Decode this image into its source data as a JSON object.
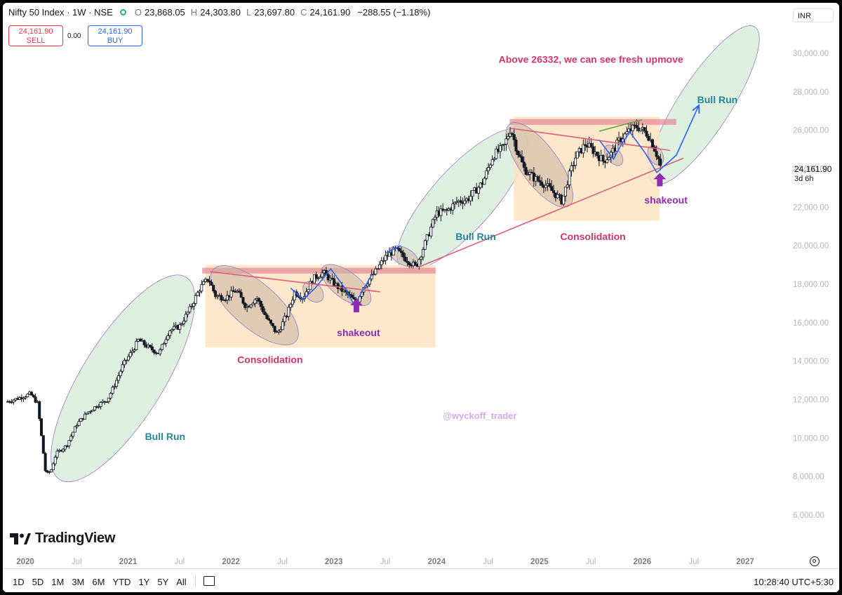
{
  "header": {
    "symbol": "Nifty 50 Index · 1W · NSE",
    "open_key": "O",
    "open": "23,868.05",
    "high_key": "H",
    "high": "24,303.80",
    "low_key": "L",
    "low": "23,697.80",
    "close_key": "C",
    "close": "24,161.90",
    "change": "−288.55 (−1.18%)"
  },
  "trade": {
    "sell_price": "24,161.90",
    "sell_label": "SELL",
    "spread": "0.00",
    "buy_price": "24,161.90",
    "buy_label": "BUY"
  },
  "currency": "INR",
  "last_price": "24,161.90",
  "countdown": "3d 6h",
  "brand": "TradingView",
  "ranges": [
    "1D",
    "5D",
    "1M",
    "3M",
    "6M",
    "YTD",
    "1Y",
    "5Y",
    "All"
  ],
  "clock": "10:28:40 UTC+5:30",
  "colors": {
    "bull_run_fill": "#c8e6c9",
    "consolidation_fill": "#fde4c3",
    "resistance": "#e57f94",
    "annotation": "#d6336c",
    "bull_label": "#26849c",
    "shakeout": "#8e2cb0",
    "watermark": "#d7a8e8",
    "trendline_blue": "#2962ff"
  },
  "chart_data": {
    "type": "candlestick",
    "symbol": "Nifty 50 Index",
    "timeframe": "1W",
    "y_axis": {
      "ticks": [
        6000,
        8000,
        10000,
        12000,
        14000,
        16000,
        18000,
        20000,
        22000,
        24000,
        26000,
        28000,
        30000
      ],
      "tick_labels": [
        "6,000.00",
        "8,000.00",
        "10,000.00",
        "12,000.00",
        "14,000.00",
        "16,000.00",
        "18,000.00",
        "20,000.00",
        "22,000.00",
        "24,000.00",
        "26,000.00",
        "28,000.00",
        "30,000.00"
      ]
    },
    "x_axis": {
      "tick_labels": [
        "2020",
        "Jul",
        "2021",
        "Jul",
        "2022",
        "Jul",
        "2023",
        "Jul",
        "2024",
        "Jul",
        "2025",
        "Jul",
        "2026",
        "Jul",
        "2027"
      ],
      "tick_dates": [
        2020.0,
        2020.5,
        2021.0,
        2021.5,
        2022.0,
        2022.5,
        2023.0,
        2023.5,
        2024.0,
        2024.5,
        2025.0,
        2025.5,
        2026.0,
        2026.5,
        2027.0
      ],
      "bold": [
        true,
        false,
        true,
        false,
        true,
        false,
        true,
        false,
        true,
        false,
        true,
        false,
        true,
        false,
        true
      ],
      "range": [
        2019.83,
        2027.3
      ]
    },
    "price_path": [
      [
        2019.83,
        11900
      ],
      [
        2019.95,
        12100
      ],
      [
        2020.05,
        12300
      ],
      [
        2020.12,
        11800
      ],
      [
        2020.17,
        9500
      ],
      [
        2020.2,
        8100
      ],
      [
        2020.25,
        8300
      ],
      [
        2020.3,
        9200
      ],
      [
        2020.4,
        9600
      ],
      [
        2020.5,
        10700
      ],
      [
        2020.6,
        11300
      ],
      [
        2020.7,
        11700
      ],
      [
        2020.8,
        12000
      ],
      [
        2020.88,
        12900
      ],
      [
        2020.95,
        13800
      ],
      [
        2021.05,
        14600
      ],
      [
        2021.1,
        15100
      ],
      [
        2021.2,
        14700
      ],
      [
        2021.3,
        14400
      ],
      [
        2021.4,
        15600
      ],
      [
        2021.5,
        15800
      ],
      [
        2021.6,
        16700
      ],
      [
        2021.7,
        17800
      ],
      [
        2021.78,
        18300
      ],
      [
        2021.85,
        17400
      ],
      [
        2021.95,
        17300
      ],
      [
        2022.05,
        17700
      ],
      [
        2022.15,
        16800
      ],
      [
        2022.25,
        17300
      ],
      [
        2022.35,
        16200
      ],
      [
        2022.45,
        15400
      ],
      [
        2022.55,
        16500
      ],
      [
        2022.62,
        17600
      ],
      [
        2022.7,
        17300
      ],
      [
        2022.8,
        18300
      ],
      [
        2022.9,
        18600
      ],
      [
        2022.97,
        18200
      ],
      [
        2023.05,
        17800
      ],
      [
        2023.15,
        17400
      ],
      [
        2023.22,
        17000
      ],
      [
        2023.28,
        17800
      ],
      [
        2023.4,
        18600
      ],
      [
        2023.5,
        19400
      ],
      [
        2023.6,
        19800
      ],
      [
        2023.68,
        19400
      ],
      [
        2023.75,
        19100
      ],
      [
        2023.8,
        18900
      ],
      [
        2023.9,
        20300
      ],
      [
        2024.0,
        21700
      ],
      [
        2024.1,
        21800
      ],
      [
        2024.2,
        22300
      ],
      [
        2024.3,
        22400
      ],
      [
        2024.45,
        23300
      ],
      [
        2024.55,
        24700
      ],
      [
        2024.65,
        25100
      ],
      [
        2024.72,
        26100
      ],
      [
        2024.78,
        25000
      ],
      [
        2024.85,
        24000
      ],
      [
        2024.95,
        23500
      ],
      [
        2025.05,
        23200
      ],
      [
        2025.15,
        22700
      ],
      [
        2025.22,
        22300
      ],
      [
        2025.28,
        23500
      ],
      [
        2025.35,
        24600
      ],
      [
        2025.45,
        25300
      ],
      [
        2025.55,
        24800
      ],
      [
        2025.62,
        24400
      ],
      [
        2025.7,
        24800
      ],
      [
        2025.78,
        25500
      ],
      [
        2025.88,
        26000
      ],
      [
        2025.95,
        26200
      ],
      [
        2026.05,
        25800
      ],
      [
        2026.1,
        25300
      ],
      [
        2026.15,
        24600
      ],
      [
        2026.18,
        24161.9
      ]
    ],
    "last_price": 24161.9,
    "zones": [
      {
        "kind": "consolidation",
        "x0": 2021.75,
        "x1": 2023.99,
        "y0": 14700,
        "y1": 19000
      },
      {
        "kind": "consolidation",
        "x0": 2024.75,
        "x1": 2026.17,
        "y0": 21300,
        "y1": 26700
      }
    ],
    "resistance_bands": [
      {
        "x0": 2021.72,
        "x1": 2023.99,
        "y0": 18550,
        "y1": 18850
      },
      {
        "x0": 2024.71,
        "x1": 2026.33,
        "y0": 26280,
        "y1": 26580
      }
    ],
    "annotations": [
      {
        "text": "Above 26332, we can see fresh upmove",
        "x": 2025.5,
        "y": 29500,
        "kind": "headline"
      },
      {
        "text": "Bull Run",
        "x": 2021.36,
        "y": 9900,
        "kind": "bull"
      },
      {
        "text": "Bull Run",
        "x": 2024.38,
        "y": 20300,
        "kind": "bull"
      },
      {
        "text": "Bull Run",
        "x": 2026.73,
        "y": 27400,
        "kind": "bull"
      },
      {
        "text": "Consolidation",
        "x": 2022.38,
        "y": 13900,
        "kind": "consol"
      },
      {
        "text": "Consolidation",
        "x": 2025.52,
        "y": 20300,
        "kind": "consol"
      },
      {
        "text": "shakeout",
        "x": 2023.24,
        "y": 15300,
        "kind": "shake"
      },
      {
        "text": "shakeout",
        "x": 2026.23,
        "y": 22200,
        "kind": "shake"
      },
      {
        "text": "@wyckoff_trader",
        "x": 2024.42,
        "y": 11000,
        "kind": "watermark"
      }
    ],
    "shakeout_arrows": [
      {
        "x": 2023.22,
        "y_tip": 17300
      },
      {
        "x": 2026.17,
        "y_tip": 23850
      }
    ],
    "trendlines": [
      {
        "color": "#e05a7a",
        "points": [
          [
            2021.8,
            18650
          ],
          [
            2023.45,
            17600
          ]
        ]
      },
      {
        "color": "#e05a7a",
        "points": [
          [
            2024.72,
            26100
          ],
          [
            2026.27,
            24950
          ]
        ]
      },
      {
        "color": "#e05a7a",
        "points": [
          [
            2023.83,
            18900
          ],
          [
            2026.4,
            24550
          ]
        ]
      },
      {
        "color": "#5aa83a",
        "points": [
          [
            2025.58,
            25950
          ],
          [
            2026.0,
            26550
          ]
        ]
      },
      {
        "color": "#2962ff",
        "points": [
          [
            2022.58,
            17800
          ],
          [
            2022.7,
            17200
          ],
          [
            2022.82,
            17800
          ],
          [
            2022.97,
            18800
          ],
          [
            2023.12,
            17700
          ],
          [
            2023.2,
            16900
          ],
          [
            2023.37,
            18500
          ]
        ]
      },
      {
        "color": "#2962ff",
        "points": [
          [
            2023.5,
            19600
          ],
          [
            2023.65,
            20000
          ]
        ]
      },
      {
        "color": "#2962ff",
        "points": [
          [
            2025.58,
            25500
          ],
          [
            2025.72,
            24500
          ],
          [
            2025.8,
            25300
          ],
          [
            2025.88,
            25900
          ],
          [
            2026.03,
            24800
          ],
          [
            2026.14,
            23800
          ],
          [
            2026.33,
            24700
          ],
          [
            2026.55,
            27300
          ]
        ]
      }
    ],
    "ellipses": [
      {
        "kind": "bull",
        "cx": 2020.95,
        "cy": 13100,
        "rx_px": 170,
        "ry_px": 58,
        "angle": -58
      },
      {
        "kind": "bull",
        "cx": 2024.25,
        "cy": 22400,
        "rx_px": 130,
        "ry_px": 44,
        "angle": -48
      },
      {
        "kind": "bull",
        "cx": 2026.6,
        "cy": 27300,
        "rx_px": 133,
        "ry_px": 37,
        "angle": -57
      },
      {
        "kind": "grey",
        "cx": 2022.23,
        "cy": 16900,
        "rx_px": 78,
        "ry_px": 32,
        "angle": 41
      },
      {
        "kind": "grey",
        "cx": 2022.8,
        "cy": 17600,
        "rx_px": 17,
        "ry_px": 12,
        "angle": 45
      },
      {
        "kind": "grey",
        "cx": 2023.12,
        "cy": 17950,
        "rx_px": 42,
        "ry_px": 19,
        "angle": 37
      },
      {
        "kind": "grey",
        "cx": 2023.68,
        "cy": 19450,
        "rx_px": 22,
        "ry_px": 12,
        "angle": 28
      },
      {
        "kind": "grey",
        "cx": 2025.0,
        "cy": 24200,
        "rx_px": 72,
        "ry_px": 27,
        "angle": 54
      },
      {
        "kind": "grey",
        "cx": 2025.72,
        "cy": 24700,
        "rx_px": 17,
        "ry_px": 10,
        "angle": 50
      },
      {
        "kind": "grey",
        "cx": 2026.13,
        "cy": 24700,
        "rx_px": 15,
        "ry_px": 10,
        "angle": 60
      }
    ]
  }
}
